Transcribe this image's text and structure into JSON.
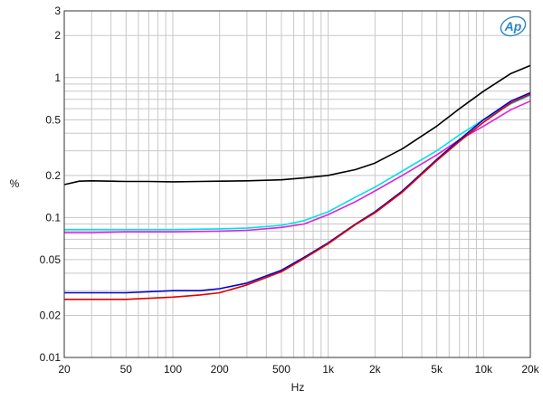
{
  "chart_data": {
    "type": "line",
    "title": "",
    "xlabel": "Hz",
    "ylabel": "%",
    "x_scale": "log",
    "y_scale": "log",
    "xlim": [
      20,
      20000
    ],
    "ylim": [
      0.01,
      3
    ],
    "grid": true,
    "x_ticks": [
      {
        "value": 20,
        "label": "20"
      },
      {
        "value": 50,
        "label": "50"
      },
      {
        "value": 100,
        "label": "100"
      },
      {
        "value": 200,
        "label": "200"
      },
      {
        "value": 500,
        "label": "500"
      },
      {
        "value": 1000,
        "label": "1k"
      },
      {
        "value": 2000,
        "label": "2k"
      },
      {
        "value": 5000,
        "label": "5k"
      },
      {
        "value": 10000,
        "label": "10k"
      },
      {
        "value": 20000,
        "label": "20k"
      }
    ],
    "y_ticks": [
      {
        "value": 0.01,
        "label": "0.01"
      },
      {
        "value": 0.02,
        "label": "0.02"
      },
      {
        "value": 0.05,
        "label": "0.05"
      },
      {
        "value": 0.1,
        "label": "0.1"
      },
      {
        "value": 0.2,
        "label": "0.2"
      },
      {
        "value": 0.5,
        "label": "0.5"
      },
      {
        "value": 1,
        "label": "1"
      },
      {
        "value": 2,
        "label": "2"
      },
      {
        "value": 3,
        "label": "3"
      }
    ],
    "series": [
      {
        "color": "#000000",
        "x": [
          20,
          25,
          30,
          40,
          50,
          70,
          100,
          150,
          200,
          300,
          500,
          700,
          1000,
          1500,
          2000,
          3000,
          5000,
          7000,
          10000,
          15000,
          20000
        ],
        "y": [
          0.172,
          0.182,
          0.183,
          0.182,
          0.181,
          0.181,
          0.18,
          0.181,
          0.182,
          0.183,
          0.186,
          0.192,
          0.2,
          0.22,
          0.245,
          0.31,
          0.45,
          0.6,
          0.8,
          1.07,
          1.22
        ]
      },
      {
        "color": "#00e0ee",
        "x": [
          20,
          30,
          50,
          100,
          200,
          300,
          500,
          700,
          1000,
          1500,
          2000,
          3000,
          5000,
          7000,
          10000,
          15000,
          20000
        ],
        "y": [
          0.082,
          0.082,
          0.082,
          0.082,
          0.083,
          0.084,
          0.088,
          0.095,
          0.11,
          0.14,
          0.165,
          0.215,
          0.3,
          0.39,
          0.5,
          0.65,
          0.75
        ]
      },
      {
        "color": "#e020e0",
        "x": [
          20,
          30,
          50,
          100,
          200,
          300,
          500,
          700,
          1000,
          1500,
          2000,
          3000,
          5000,
          7000,
          10000,
          15000,
          20000
        ],
        "y": [
          0.078,
          0.078,
          0.079,
          0.079,
          0.08,
          0.081,
          0.085,
          0.09,
          0.105,
          0.13,
          0.155,
          0.2,
          0.28,
          0.36,
          0.45,
          0.59,
          0.68
        ]
      },
      {
        "color": "#0000cc",
        "x": [
          20,
          30,
          50,
          100,
          150,
          200,
          300,
          500,
          700,
          1000,
          1500,
          2000,
          3000,
          5000,
          7000,
          10000,
          15000,
          20000
        ],
        "y": [
          0.029,
          0.029,
          0.029,
          0.03,
          0.03,
          0.031,
          0.034,
          0.042,
          0.052,
          0.066,
          0.09,
          0.11,
          0.155,
          0.26,
          0.36,
          0.5,
          0.68,
          0.78
        ]
      },
      {
        "color": "#e00000",
        "x": [
          20,
          30,
          50,
          100,
          150,
          200,
          300,
          500,
          700,
          1000,
          1500,
          2000,
          3000,
          5000,
          7000,
          10000,
          15000,
          20000
        ],
        "y": [
          0.026,
          0.026,
          0.026,
          0.027,
          0.028,
          0.029,
          0.033,
          0.041,
          0.051,
          0.065,
          0.089,
          0.108,
          0.152,
          0.255,
          0.35,
          0.48,
          0.66,
          0.76
        ]
      }
    ]
  },
  "logo": {
    "text": "Ap",
    "color": "#2b86c5"
  }
}
